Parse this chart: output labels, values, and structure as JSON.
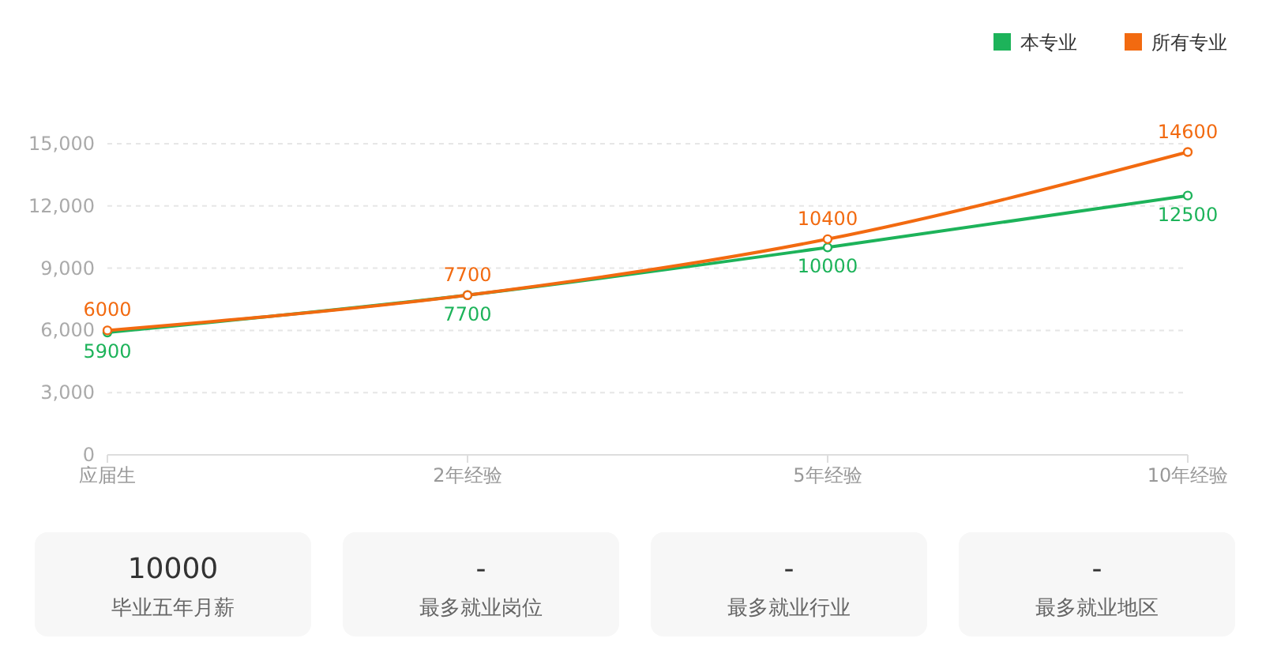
{
  "chart_data": [
    {
      "type": "line",
      "categories": [
        "应届生",
        "2年经验",
        "5年经验",
        "10年经验"
      ],
      "series": [
        {
          "name": "本专业",
          "color": "#1db35a",
          "values": [
            5900,
            7700,
            10000,
            12500
          ]
        },
        {
          "name": "所有专业",
          "color": "#f26a10",
          "values": [
            6000,
            7700,
            10400,
            14600
          ]
        }
      ],
      "ylim": [
        0,
        15000
      ],
      "yticks": [
        0,
        {
          "value": 3000,
          "label": "3,000"
        },
        {
          "value": 6000,
          "label": "6,000"
        },
        {
          "value": 9000,
          "label": "9,000"
        },
        {
          "value": 12000,
          "label": "12,000"
        },
        {
          "value": 15000,
          "label": "15,000"
        }
      ],
      "grid": "y",
      "legend": "top right",
      "marker": "circle",
      "line_style": "solid",
      "data_labels": true
    },
    {
      "type": "other",
      "categories": [
        "毕业五年月薪",
        "最多就业岗位",
        "最多就业行业",
        "最多就业地区"
      ],
      "value_labels": [
        "10000",
        "-",
        "-",
        "-"
      ]
    }
  ]
}
